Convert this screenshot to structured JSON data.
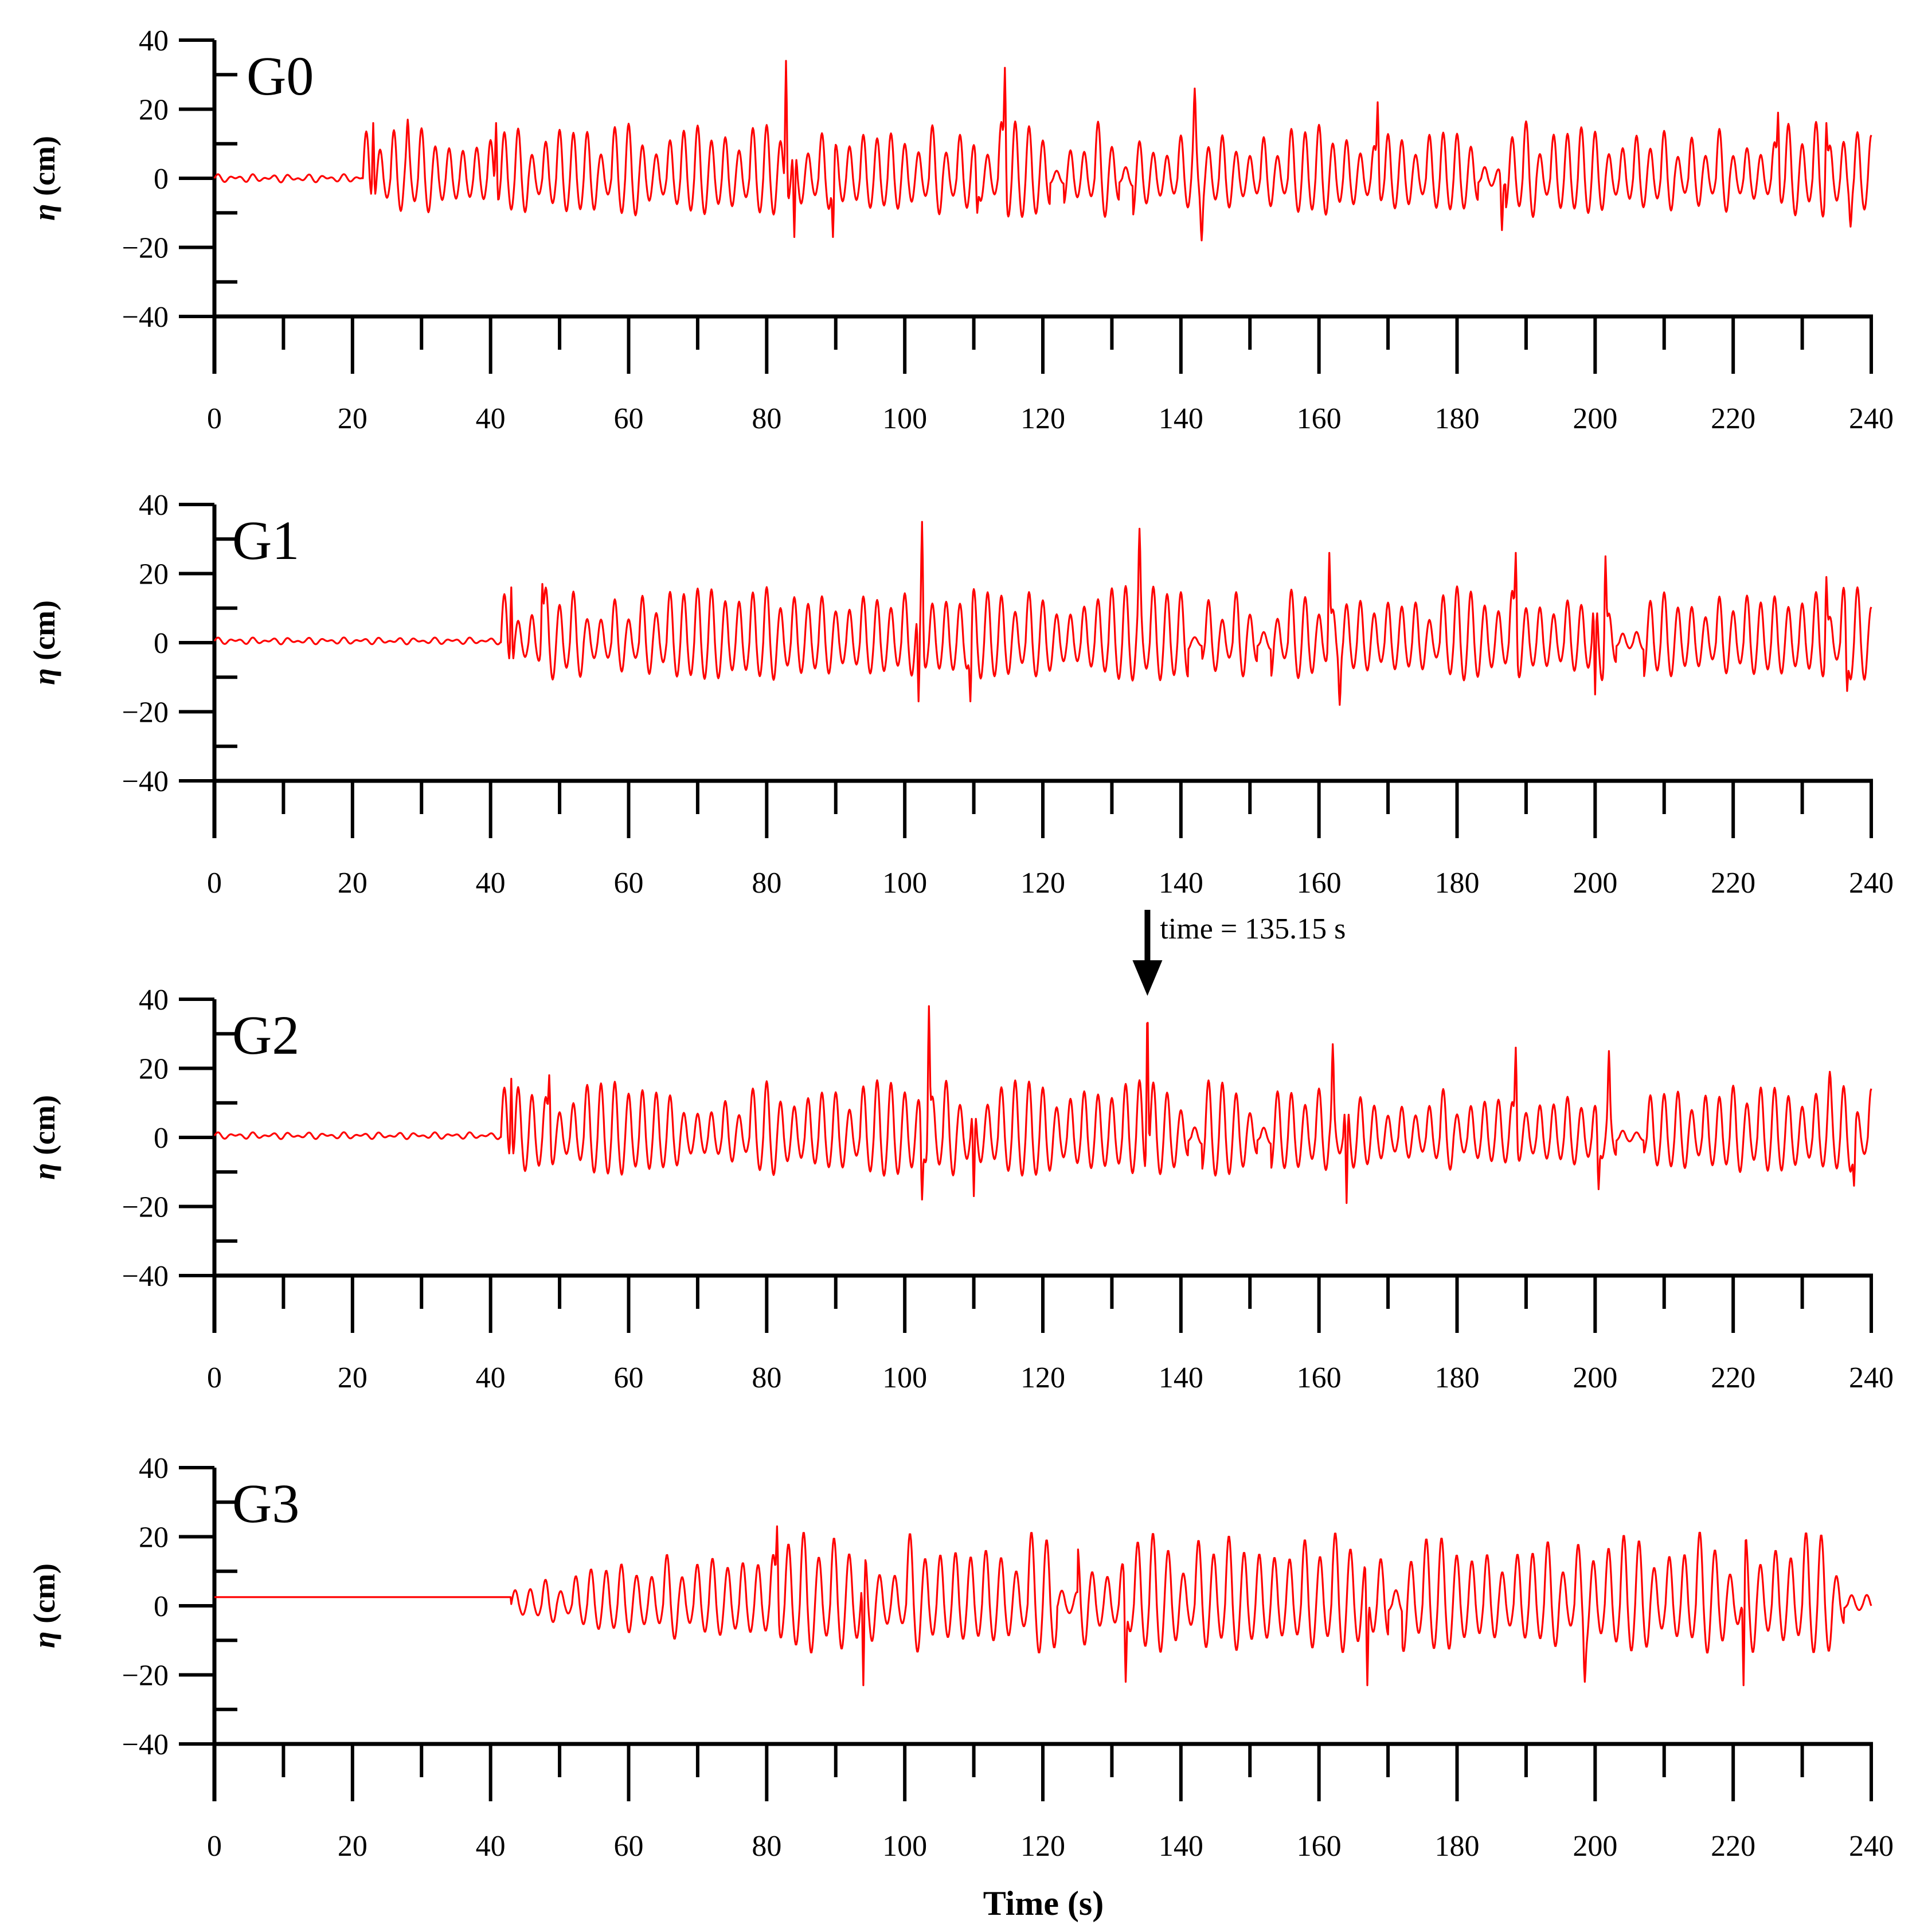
{
  "colors": {
    "series": "#ff0000",
    "axes": "#000000",
    "background": "#ffffff"
  },
  "chart_data": [
    {
      "type": "line",
      "title": "G0",
      "xlabel": "",
      "ylabel": "η (cm)",
      "ylabel_symbol": "η",
      "ylabel_unit": " (cm)",
      "xlim": [
        0,
        240
      ],
      "ylim": [
        -40,
        40
      ],
      "xticks": [
        0,
        20,
        40,
        60,
        80,
        100,
        120,
        140,
        160,
        180,
        200,
        220,
        240
      ],
      "yticks": [
        40,
        20,
        0,
        -20,
        -40
      ],
      "xtick_labels": [
        "0",
        "20",
        "40",
        "60",
        "80",
        "100",
        "120",
        "140",
        "160",
        "180",
        "200",
        "220",
        "240"
      ],
      "ytick_labels": [
        "40",
        "20",
        "0",
        "−20",
        "−40"
      ],
      "grid": false,
      "series": [
        {
          "values_start": 0,
          "values_end": 240,
          "onset": 21.5,
          "pre_offset": 0,
          "pre_amp": 1.2,
          "period": 2.0,
          "amp": 11,
          "peaks": [
            {
              "t": 23.0,
              "v": 16
            },
            {
              "t": 28.0,
              "v": 17
            },
            {
              "t": 40.8,
              "v": 16
            },
            {
              "t": 82.8,
              "v": 34
            },
            {
              "t": 84.0,
              "v": -17
            },
            {
              "t": 89.6,
              "v": -17
            },
            {
              "t": 114.5,
              "v": 32
            },
            {
              "t": 110.5,
              "v": -10
            },
            {
              "t": 142.0,
              "v": 26
            },
            {
              "t": 143.0,
              "v": -18
            },
            {
              "t": 168.5,
              "v": 22
            },
            {
              "t": 186.5,
              "v": -15
            },
            {
              "t": 226.5,
              "v": 19
            },
            {
              "t": 233.5,
              "v": 16
            },
            {
              "t": 237.0,
              "v": -14
            }
          ],
          "quiet": [
            [
              121,
              123
            ],
            [
              131,
              133
            ],
            [
              183,
              187
            ]
          ],
          "clip": null
        }
      ]
    },
    {
      "type": "line",
      "title": "G1",
      "xlabel": "",
      "ylabel": "η (cm)",
      "ylabel_symbol": "η",
      "ylabel_unit": " (cm)",
      "xlim": [
        0,
        240
      ],
      "ylim": [
        -40,
        40
      ],
      "xticks": [
        0,
        20,
        40,
        60,
        80,
        100,
        120,
        140,
        160,
        180,
        200,
        220,
        240
      ],
      "yticks": [
        40,
        20,
        0,
        -20,
        -40
      ],
      "xtick_labels": [
        "0",
        "20",
        "40",
        "60",
        "80",
        "100",
        "120",
        "140",
        "160",
        "180",
        "200",
        "220",
        "240"
      ],
      "ytick_labels": [
        "40",
        "20",
        "0",
        "−20",
        "−40"
      ],
      "grid": false,
      "series": [
        {
          "values_start": 0,
          "values_end": 240,
          "onset": 41.5,
          "pre_offset": 0.5,
          "pre_amp": 1.0,
          "period": 2.0,
          "amp": 11,
          "peaks": [
            {
              "t": 43.0,
              "v": 16
            },
            {
              "t": 47.5,
              "v": 17
            },
            {
              "t": 102.5,
              "v": 35
            },
            {
              "t": 102.0,
              "v": -17
            },
            {
              "t": 109.5,
              "v": -17
            },
            {
              "t": 134.0,
              "v": 33
            },
            {
              "t": 161.5,
              "v": 26
            },
            {
              "t": 163.0,
              "v": -18
            },
            {
              "t": 188.5,
              "v": 26
            },
            {
              "t": 200.0,
              "v": -15
            },
            {
              "t": 201.5,
              "v": 25
            },
            {
              "t": 233.5,
              "v": 19
            },
            {
              "t": 236.5,
              "v": -14
            }
          ],
          "quiet": [
            [
              141,
              143
            ],
            [
              151,
              153
            ],
            [
              203,
              207
            ]
          ],
          "clip": null
        }
      ]
    },
    {
      "type": "line",
      "title": "G2",
      "xlabel": "",
      "ylabel": "η (cm)",
      "ylabel_symbol": "η",
      "ylabel_unit": " (cm)",
      "xlim": [
        0,
        240
      ],
      "ylim": [
        -40,
        40
      ],
      "xticks": [
        0,
        20,
        40,
        60,
        80,
        100,
        120,
        140,
        160,
        180,
        200,
        220,
        240
      ],
      "yticks": [
        40,
        20,
        0,
        -20,
        -40
      ],
      "xtick_labels": [
        "0",
        "20",
        "40",
        "60",
        "80",
        "100",
        "120",
        "140",
        "160",
        "180",
        "200",
        "220",
        "240"
      ],
      "ytick_labels": [
        "40",
        "20",
        "0",
        "−20",
        "−40"
      ],
      "grid": false,
      "annotations": [
        {
          "text": "time = 135.15 s",
          "x": 135.15,
          "y": 38
        }
      ],
      "series": [
        {
          "values_start": 0,
          "values_end": 240,
          "onset": 41.5,
          "pre_offset": 0.5,
          "pre_amp": 1.0,
          "period": 2.0,
          "amp": 11,
          "peaks": [
            {
              "t": 43.0,
              "v": 17
            },
            {
              "t": 48.5,
              "v": 18
            },
            {
              "t": 103.5,
              "v": 38
            },
            {
              "t": 102.5,
              "v": -18
            },
            {
              "t": 110.0,
              "v": -17
            },
            {
              "t": 135.15,
              "v": 37
            },
            {
              "t": 162.0,
              "v": 27
            },
            {
              "t": 164.0,
              "v": -19
            },
            {
              "t": 188.5,
              "v": 26
            },
            {
              "t": 200.5,
              "v": -15
            },
            {
              "t": 202.0,
              "v": 25
            },
            {
              "t": 234.0,
              "v": 19
            },
            {
              "t": 237.5,
              "v": -14
            }
          ],
          "quiet": [
            [
              141,
              143
            ],
            [
              151,
              153
            ],
            [
              203,
              207
            ]
          ],
          "clip": null
        }
      ]
    },
    {
      "type": "line",
      "title": "G3",
      "xlabel": "Time (s)",
      "ylabel": "η (cm)",
      "ylabel_symbol": "η",
      "ylabel_unit": " (cm)",
      "xlim": [
        0,
        240
      ],
      "ylim": [
        -40,
        40
      ],
      "xticks": [
        0,
        20,
        40,
        60,
        80,
        100,
        120,
        140,
        160,
        180,
        200,
        220,
        240
      ],
      "yticks": [
        40,
        20,
        0,
        -20,
        -40
      ],
      "xtick_labels": [
        "0",
        "20",
        "40",
        "60",
        "80",
        "100",
        "120",
        "140",
        "160",
        "180",
        "200",
        "220",
        "240"
      ],
      "ytick_labels": [
        "40",
        "20",
        "0",
        "−20",
        "−40"
      ],
      "grid": false,
      "series": [
        {
          "values_start": 0,
          "values_end": 240,
          "onset": 43.0,
          "pre_offset": 2.5,
          "pre_amp": 0.0,
          "period": 2.2,
          "amp": 14,
          "growth_end": 72,
          "peaks": [
            {
              "t": 81.5,
              "v": 23
            },
            {
              "t": 94.0,
              "v": -23
            },
            {
              "t": 167.0,
              "v": -23
            },
            {
              "t": 221.5,
              "v": -23
            },
            {
              "t": 198.5,
              "v": -22
            },
            {
              "t": 132.0,
              "v": -22
            }
          ],
          "quiet": [
            [
              122,
              125
            ],
            [
              170,
              172
            ],
            [
              236,
              240
            ]
          ],
          "clip": [
            -23,
            23
          ]
        }
      ]
    }
  ]
}
